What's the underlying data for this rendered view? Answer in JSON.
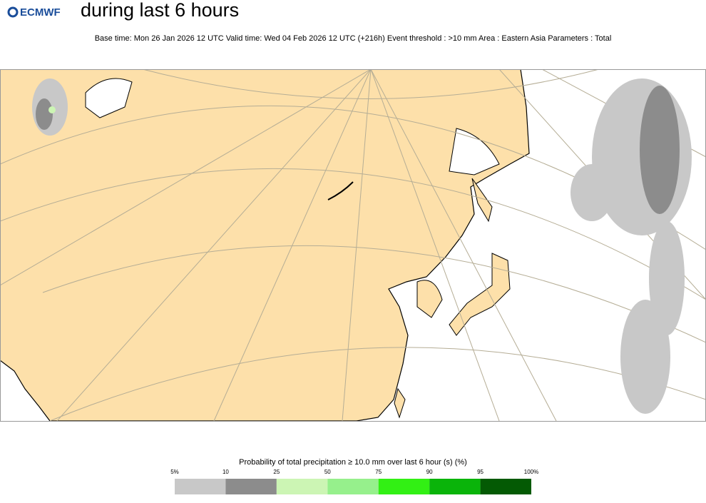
{
  "header": {
    "logo": "ECMWF",
    "title": "during last 6 hours",
    "subtitle": "Base time: Mon 26 Jan 2026 12 UTC Valid time: Wed 04 Feb 2026 12 UTC (+216h) Event threshold : >10 mm Area : Eastern Asia Parameters : Total"
  },
  "legend": {
    "title": "Probability of total precipitation ≥ 10.0 mm over last 6 hour (s) (%)",
    "labels": [
      "5%",
      "10",
      "25",
      "50",
      "75",
      "90",
      "95",
      "100%"
    ],
    "colors": [
      "#c8c8c8",
      "#8c8c8c",
      "#ccf5b4",
      "#96f08c",
      "#32f014",
      "#0ab40a",
      "#045a04"
    ]
  }
}
